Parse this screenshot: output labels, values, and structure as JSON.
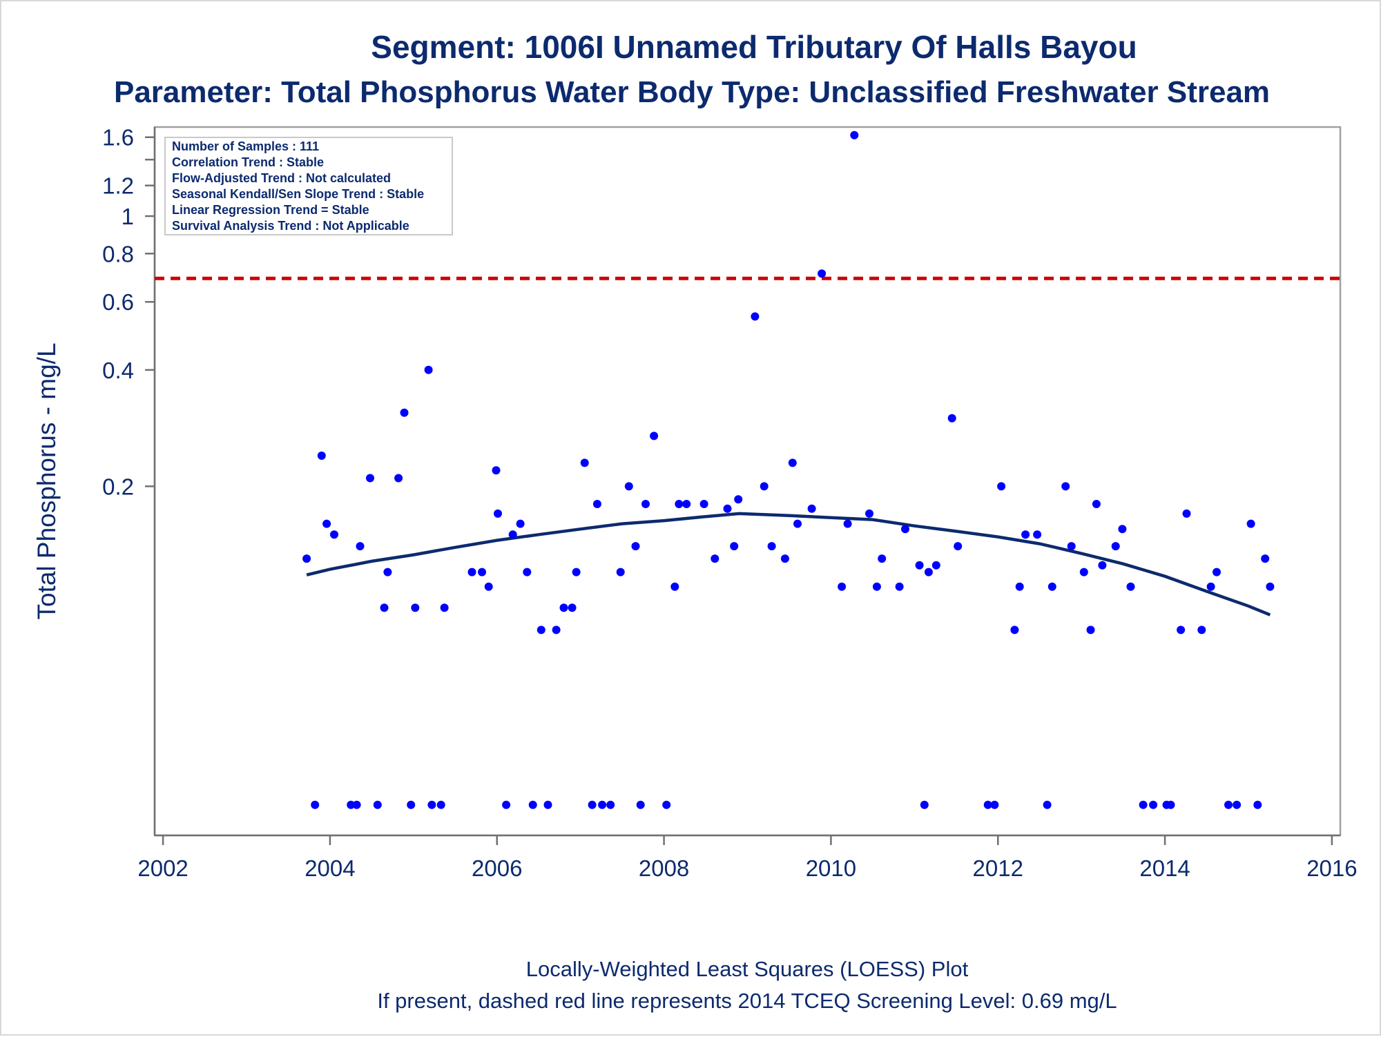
{
  "title": "Segment: 1006I  Unnamed Tributary Of Halls Bayou",
  "subtitle": "Parameter: Total Phosphorus   Water Body Type: Unclassified Freshwater Stream",
  "footnotes": [
    "Locally-Weighted Least Squares (LOESS) Plot",
    "If present, dashed red line represents 2014 TCEQ Screening Level: 0.69 mg/L"
  ],
  "stats": [
    "Number of Samples : 111",
    "Correlation Trend : Stable",
    "Flow-Adjusted Trend : Not calculated",
    "Seasonal Kendall/Sen Slope Trend : Stable",
    "Linear Regression Trend = Stable",
    "Survival Analysis Trend : Not Applicable"
  ],
  "colors": {
    "text": "#0c2a6e",
    "points": "#0000ff",
    "loess": "#0c2a6e",
    "screening": "#d00000",
    "axis": "#a0a0a0"
  },
  "chart_data": {
    "type": "scatter",
    "xlabel": "",
    "ylabel": "Total Phosphorus - mg/L",
    "xlim": [
      2001.9,
      2016.1
    ],
    "x_ticks": [
      2002,
      2004,
      2006,
      2008,
      2010,
      2012,
      2014,
      2016
    ],
    "x_tick_labels": [
      "2002",
      "2004",
      "2006",
      "2008",
      "2010",
      "2012",
      "2014",
      "2016"
    ],
    "y_scale": "log",
    "ylim": [
      0.025,
      1.7
    ],
    "y_ticks": [
      0.2,
      0.4,
      0.6,
      0.8,
      1,
      1.2,
      1.6
    ],
    "y_tick_labels": [
      "0.2",
      "0.4",
      "0.6",
      "0.8",
      "1",
      "1.2",
      "1.6"
    ],
    "y_minor_ticks": [
      1.4
    ],
    "grid": false,
    "legend": "none",
    "reference_line": {
      "y": 0.69,
      "style": "dashed"
    },
    "points": [
      [
        2003.72,
        0.13
      ],
      [
        2003.82,
        0.03
      ],
      [
        2003.9,
        0.24
      ],
      [
        2003.96,
        0.16
      ],
      [
        2004.05,
        0.15
      ],
      [
        2004.25,
        0.03
      ],
      [
        2004.32,
        0.03
      ],
      [
        2004.36,
        0.14
      ],
      [
        2004.48,
        0.21
      ],
      [
        2004.57,
        0.03
      ],
      [
        2004.65,
        0.097
      ],
      [
        2004.69,
        0.12
      ],
      [
        2004.82,
        0.21
      ],
      [
        2004.89,
        0.31
      ],
      [
        2004.97,
        0.03
      ],
      [
        2005.02,
        0.097
      ],
      [
        2005.18,
        0.4
      ],
      [
        2005.22,
        0.03
      ],
      [
        2005.33,
        0.03
      ],
      [
        2005.37,
        0.097
      ],
      [
        2005.7,
        0.12
      ],
      [
        2005.82,
        0.12
      ],
      [
        2005.9,
        0.11
      ],
      [
        2005.99,
        0.22
      ],
      [
        2006.01,
        0.17
      ],
      [
        2006.11,
        0.03
      ],
      [
        2006.19,
        0.15
      ],
      [
        2006.28,
        0.16
      ],
      [
        2006.36,
        0.12
      ],
      [
        2006.43,
        0.03
      ],
      [
        2006.53,
        0.085
      ],
      [
        2006.61,
        0.03
      ],
      [
        2006.71,
        0.085
      ],
      [
        2006.8,
        0.097
      ],
      [
        2006.9,
        0.097
      ],
      [
        2006.95,
        0.12
      ],
      [
        2007.05,
        0.23
      ],
      [
        2007.14,
        0.03
      ],
      [
        2007.2,
        0.18
      ],
      [
        2007.26,
        0.03
      ],
      [
        2007.36,
        0.03
      ],
      [
        2007.48,
        0.12
      ],
      [
        2007.58,
        0.2
      ],
      [
        2007.66,
        0.14
      ],
      [
        2007.72,
        0.03
      ],
      [
        2007.78,
        0.18
      ],
      [
        2007.88,
        0.27
      ],
      [
        2008.03,
        0.03
      ],
      [
        2008.13,
        0.11
      ],
      [
        2008.18,
        0.18
      ],
      [
        2008.27,
        0.18
      ],
      [
        2008.48,
        0.18
      ],
      [
        2008.61,
        0.13
      ],
      [
        2008.76,
        0.175
      ],
      [
        2008.84,
        0.14
      ],
      [
        2008.89,
        0.185
      ],
      [
        2009.09,
        0.55
      ],
      [
        2009.2,
        0.2
      ],
      [
        2009.29,
        0.14
      ],
      [
        2009.45,
        0.13
      ],
      [
        2009.54,
        0.23
      ],
      [
        2009.6,
        0.16
      ],
      [
        2009.77,
        0.175
      ],
      [
        2009.89,
        0.71
      ],
      [
        2010.13,
        0.11
      ],
      [
        2010.2,
        0.16
      ],
      [
        2010.28,
        1.62
      ],
      [
        2010.46,
        0.17
      ],
      [
        2010.55,
        0.11
      ],
      [
        2010.61,
        0.13
      ],
      [
        2010.82,
        0.11
      ],
      [
        2010.89,
        0.155
      ],
      [
        2011.06,
        0.125
      ],
      [
        2011.12,
        0.03
      ],
      [
        2011.17,
        0.12
      ],
      [
        2011.26,
        0.125
      ],
      [
        2011.45,
        0.3
      ],
      [
        2011.52,
        0.14
      ],
      [
        2011.88,
        0.03
      ],
      [
        2011.96,
        0.03
      ],
      [
        2012.04,
        0.2
      ],
      [
        2012.2,
        0.085
      ],
      [
        2012.26,
        0.11
      ],
      [
        2012.33,
        0.15
      ],
      [
        2012.47,
        0.15
      ],
      [
        2012.59,
        0.03
      ],
      [
        2012.65,
        0.11
      ],
      [
        2012.81,
        0.2
      ],
      [
        2012.88,
        0.14
      ],
      [
        2013.03,
        0.12
      ],
      [
        2013.11,
        0.085
      ],
      [
        2013.18,
        0.18
      ],
      [
        2013.25,
        0.125
      ],
      [
        2013.41,
        0.14
      ],
      [
        2013.49,
        0.155
      ],
      [
        2013.59,
        0.11
      ],
      [
        2013.74,
        0.03
      ],
      [
        2013.86,
        0.03
      ],
      [
        2014.02,
        0.03
      ],
      [
        2014.07,
        0.03
      ],
      [
        2014.19,
        0.085
      ],
      [
        2014.26,
        0.17
      ],
      [
        2014.44,
        0.085
      ],
      [
        2014.55,
        0.11
      ],
      [
        2014.62,
        0.12
      ],
      [
        2014.76,
        0.03
      ],
      [
        2014.86,
        0.03
      ],
      [
        2015.03,
        0.16
      ],
      [
        2015.11,
        0.03
      ],
      [
        2015.2,
        0.13
      ],
      [
        2015.26,
        0.11
      ]
    ],
    "loess": [
      [
        2003.72,
        0.118
      ],
      [
        2004.0,
        0.122
      ],
      [
        2004.5,
        0.128
      ],
      [
        2005.0,
        0.133
      ],
      [
        2005.5,
        0.139
      ],
      [
        2006.0,
        0.145
      ],
      [
        2006.5,
        0.15
      ],
      [
        2007.0,
        0.155
      ],
      [
        2007.5,
        0.16
      ],
      [
        2008.0,
        0.163
      ],
      [
        2008.5,
        0.167
      ],
      [
        2008.9,
        0.17
      ],
      [
        2009.5,
        0.168
      ],
      [
        2010.0,
        0.166
      ],
      [
        2010.5,
        0.164
      ],
      [
        2011.0,
        0.158
      ],
      [
        2011.5,
        0.153
      ],
      [
        2012.0,
        0.148
      ],
      [
        2012.5,
        0.142
      ],
      [
        2013.0,
        0.134
      ],
      [
        2013.5,
        0.126
      ],
      [
        2014.0,
        0.117
      ],
      [
        2014.5,
        0.107
      ],
      [
        2015.0,
        0.098
      ],
      [
        2015.26,
        0.093
      ]
    ]
  }
}
